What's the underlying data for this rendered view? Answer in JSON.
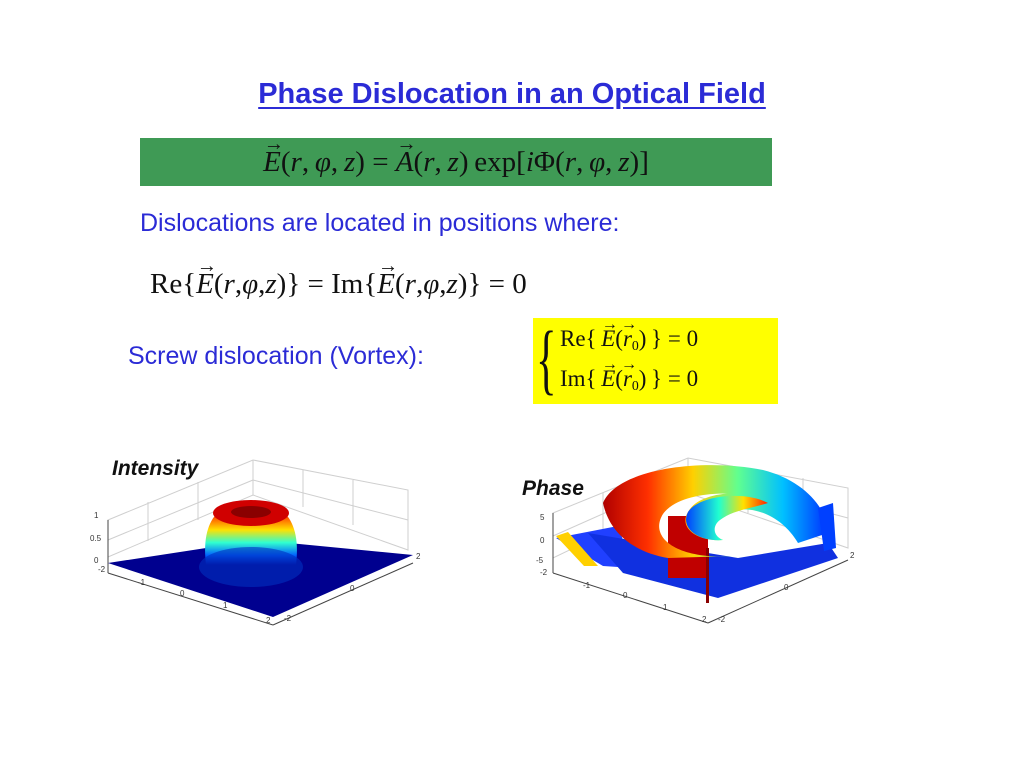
{
  "slide": {
    "title": "Phase Dislocation in an Optical Field",
    "dislocations_text": "Dislocations are located in positions where:",
    "screw_text": "Screw dislocation (Vortex):"
  },
  "equation_field": {
    "lhs": "E(r, φ, z) = A(r, z) exp[iΦ(r, φ, z)]"
  },
  "equation_condition": {
    "text": "Re{E(r,φ,z)} = Im{E(r,φ,z)} = 0"
  },
  "vortex_system": {
    "line1": "Re{E(r0)} = 0",
    "line2": "Im{E(r0)} = 0"
  },
  "plots": {
    "intensity": {
      "label": "Intensity",
      "z_ticks": [
        "1",
        "0.5",
        "0"
      ],
      "x_ticks": [
        "-2",
        "-1",
        "0",
        "1",
        "2"
      ],
      "y_ticks": [
        "2",
        "0",
        "-2"
      ]
    },
    "phase": {
      "label": "Phase",
      "z_ticks": [
        "5",
        "0",
        "-5"
      ],
      "x_ticks": [
        "-2",
        "-1",
        "0",
        "1",
        "2"
      ],
      "y_ticks": [
        "2",
        "0",
        "-2"
      ]
    }
  },
  "colors": {
    "title_blue": "#2b2bd6",
    "equation_green": "#3f9a55",
    "highlight_yellow": "#ffff00"
  }
}
